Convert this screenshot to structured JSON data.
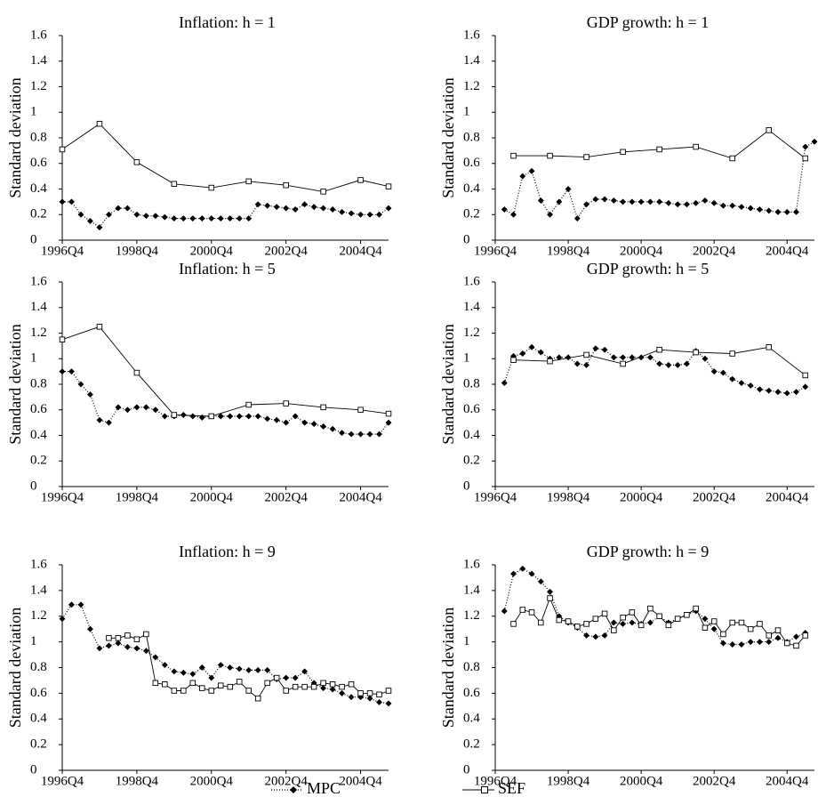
{
  "chart_data": [
    {
      "type": "line",
      "title": "Inflation: h = 1",
      "y_label": "Standard deviation",
      "xlim": [
        1996.75,
        2005.5
      ],
      "xticks": [
        {
          "value": 1996.75,
          "label": "1996Q4"
        },
        {
          "value": 1998.75,
          "label": "1998Q4"
        },
        {
          "value": 2000.75,
          "label": "2000Q4"
        },
        {
          "value": 2002.75,
          "label": "2002Q4"
        },
        {
          "value": 2004.75,
          "label": "2004Q4"
        }
      ],
      "ylim": [
        0,
        1.6
      ],
      "yticks": [
        0,
        0.2,
        0.4,
        0.6,
        0.8,
        1,
        1.2,
        1.4,
        1.6
      ],
      "series": [
        {
          "name": "MPC",
          "color": "#000000",
          "line_style": "dotted",
          "marker": "diamond",
          "x": [
            1996.75,
            1997,
            1997.25,
            1997.5,
            1997.75,
            1998,
            1998.25,
            1998.5,
            1998.75,
            1999,
            1999.25,
            1999.5,
            1999.75,
            2000,
            2000.25,
            2000.5,
            2000.75,
            2001,
            2001.25,
            2001.5,
            2001.75,
            2002,
            2002.25,
            2002.5,
            2002.75,
            2003,
            2003.25,
            2003.5,
            2003.75,
            2004,
            2004.25,
            2004.5,
            2004.75,
            2005,
            2005.25,
            2005.5
          ],
          "values": [
            0.3,
            0.3,
            0.2,
            0.15,
            0.1,
            0.2,
            0.25,
            0.25,
            0.2,
            0.19,
            0.19,
            0.18,
            0.17,
            0.17,
            0.17,
            0.17,
            0.17,
            0.17,
            0.17,
            0.17,
            0.17,
            0.28,
            0.27,
            0.26,
            0.25,
            0.24,
            0.28,
            0.26,
            0.25,
            0.24,
            0.22,
            0.21,
            0.2,
            0.2,
            0.2,
            0.25
          ]
        },
        {
          "name": "SEF",
          "color": "#000000",
          "line_style": "solid",
          "marker": "square",
          "x": [
            1996.75,
            1997.75,
            1998.75,
            1999.75,
            2000.75,
            2001.75,
            2002.75,
            2003.75,
            2004.75,
            2005.5
          ],
          "values": [
            0.71,
            0.91,
            0.61,
            0.44,
            0.41,
            0.46,
            0.43,
            0.38,
            0.47,
            0.42
          ]
        }
      ]
    },
    {
      "type": "line",
      "title": "GDP growth: h = 1",
      "y_label": "Standard deviation",
      "xlim": [
        1996.75,
        2005.5
      ],
      "xticks": [
        {
          "value": 1996.75,
          "label": "1996Q4"
        },
        {
          "value": 1998.75,
          "label": "1998Q4"
        },
        {
          "value": 2000.75,
          "label": "2000Q4"
        },
        {
          "value": 2002.75,
          "label": "2002Q4"
        },
        {
          "value": 2004.75,
          "label": "2004Q4"
        }
      ],
      "ylim": [
        0,
        1.6
      ],
      "yticks": [
        0,
        0.2,
        0.4,
        0.6,
        0.8,
        1,
        1.2,
        1.4,
        1.6
      ],
      "series": [
        {
          "name": "MPC",
          "color": "#000000",
          "line_style": "dotted",
          "marker": "diamond",
          "x": [
            1997,
            1997.25,
            1997.5,
            1997.75,
            1998,
            1998.25,
            1998.5,
            1998.75,
            1999,
            1999.25,
            1999.5,
            1999.75,
            2000,
            2000.25,
            2000.5,
            2000.75,
            2001,
            2001.25,
            2001.5,
            2001.75,
            2002,
            2002.25,
            2002.5,
            2002.75,
            2003,
            2003.25,
            2003.5,
            2003.75,
            2004,
            2004.25,
            2004.5,
            2004.75,
            2005,
            2005.25,
            2005.5
          ],
          "values": [
            0.24,
            0.2,
            0.5,
            0.54,
            0.31,
            0.2,
            0.3,
            0.4,
            0.17,
            0.28,
            0.32,
            0.32,
            0.31,
            0.3,
            0.3,
            0.3,
            0.3,
            0.3,
            0.29,
            0.28,
            0.28,
            0.29,
            0.31,
            0.29,
            0.27,
            0.27,
            0.26,
            0.25,
            0.24,
            0.23,
            0.22,
            0.22,
            0.22,
            0.73,
            0.77
          ]
        },
        {
          "name": "SEF",
          "color": "#000000",
          "line_style": "solid",
          "marker": "square",
          "x": [
            1997.25,
            1998.25,
            1999.25,
            2000.25,
            2001.25,
            2002.25,
            2003.25,
            2004.25,
            2005.25
          ],
          "values": [
            0.66,
            0.66,
            0.65,
            0.69,
            0.71,
            0.73,
            0.64,
            0.86,
            0.64
          ]
        }
      ]
    },
    {
      "type": "line",
      "title": "Inflation: h = 5",
      "y_label": "Standard deviation",
      "xlim": [
        1996.75,
        2005.5
      ],
      "xticks": [
        {
          "value": 1996.75,
          "label": "1996Q4"
        },
        {
          "value": 1998.75,
          "label": "1998Q4"
        },
        {
          "value": 2000.75,
          "label": "2000Q4"
        },
        {
          "value": 2002.75,
          "label": "2002Q4"
        },
        {
          "value": 2004.75,
          "label": "2004Q4"
        }
      ],
      "ylim": [
        0,
        1.6
      ],
      "yticks": [
        0,
        0.2,
        0.4,
        0.6,
        0.8,
        1,
        1.2,
        1.4,
        1.6
      ],
      "series": [
        {
          "name": "MPC",
          "color": "#000000",
          "line_style": "dotted",
          "marker": "diamond",
          "x": [
            1996.75,
            1997,
            1997.25,
            1997.5,
            1997.75,
            1998,
            1998.25,
            1998.5,
            1998.75,
            1999,
            1999.25,
            1999.5,
            1999.75,
            2000,
            2000.25,
            2000.5,
            2000.75,
            2001,
            2001.25,
            2001.5,
            2001.75,
            2002,
            2002.25,
            2002.5,
            2002.75,
            2003,
            2003.25,
            2003.5,
            2003.75,
            2004,
            2004.25,
            2004.5,
            2004.75,
            2005,
            2005.25,
            2005.5
          ],
          "values": [
            0.9,
            0.9,
            0.8,
            0.72,
            0.52,
            0.5,
            0.62,
            0.6,
            0.62,
            0.62,
            0.6,
            0.55,
            0.55,
            0.56,
            0.55,
            0.54,
            0.55,
            0.55,
            0.55,
            0.55,
            0.55,
            0.55,
            0.53,
            0.52,
            0.5,
            0.55,
            0.5,
            0.49,
            0.47,
            0.45,
            0.42,
            0.41,
            0.41,
            0.41,
            0.41,
            0.5
          ]
        },
        {
          "name": "SEF",
          "color": "#000000",
          "line_style": "solid",
          "marker": "square",
          "x": [
            1996.75,
            1997.75,
            1998.75,
            1999.75,
            2000.75,
            2001.75,
            2002.75,
            2003.75,
            2004.75,
            2005.5
          ],
          "values": [
            1.15,
            1.25,
            0.89,
            0.56,
            0.55,
            0.64,
            0.65,
            0.62,
            0.6,
            0.57
          ]
        }
      ]
    },
    {
      "type": "line",
      "title": "GDP growth: h = 5",
      "y_label": "Standard deviation",
      "xlim": [
        1996.75,
        2005.5
      ],
      "xticks": [
        {
          "value": 1996.75,
          "label": "1996Q4"
        },
        {
          "value": 1998.75,
          "label": "1998Q4"
        },
        {
          "value": 2000.75,
          "label": "2000Q4"
        },
        {
          "value": 2002.75,
          "label": "2002Q4"
        },
        {
          "value": 2004.75,
          "label": "2004Q4"
        }
      ],
      "ylim": [
        0,
        1.6
      ],
      "yticks": [
        0,
        0.2,
        0.4,
        0.6,
        0.8,
        1,
        1.2,
        1.4,
        1.6
      ],
      "series": [
        {
          "name": "MPC",
          "color": "#000000",
          "line_style": "dotted",
          "marker": "diamond",
          "x": [
            1997,
            1997.25,
            1997.5,
            1997.75,
            1998,
            1998.25,
            1998.5,
            1998.75,
            1999,
            1999.25,
            1999.5,
            1999.75,
            2000,
            2000.25,
            2000.5,
            2000.75,
            2001,
            2001.25,
            2001.5,
            2001.75,
            2002,
            2002.25,
            2002.5,
            2002.75,
            2003,
            2003.25,
            2003.5,
            2003.75,
            2004,
            2004.25,
            2004.5,
            2004.75,
            2005,
            2005.25
          ],
          "values": [
            0.81,
            1.02,
            1.04,
            1.09,
            1.05,
            1.0,
            1.01,
            1.01,
            0.96,
            0.95,
            1.08,
            1.07,
            1.01,
            1.01,
            1.01,
            1.01,
            1.01,
            0.96,
            0.95,
            0.95,
            0.96,
            1.06,
            1.0,
            0.9,
            0.89,
            0.84,
            0.81,
            0.79,
            0.76,
            0.75,
            0.74,
            0.73,
            0.74,
            0.78
          ]
        },
        {
          "name": "SEF",
          "color": "#000000",
          "line_style": "solid",
          "marker": "square",
          "x": [
            1997.25,
            1998.25,
            1999.25,
            2000.25,
            2001.25,
            2002.25,
            2003.25,
            2004.25,
            2005.25
          ],
          "values": [
            0.99,
            0.98,
            1.03,
            0.96,
            1.07,
            1.05,
            1.04,
            1.09,
            0.87
          ]
        }
      ]
    },
    {
      "type": "line",
      "title": "Inflation: h = 9",
      "y_label": "Standard deviation",
      "xlim": [
        1996.75,
        2005.5
      ],
      "xticks": [
        {
          "value": 1996.75,
          "label": "1996Q4"
        },
        {
          "value": 1998.75,
          "label": "1998Q4"
        },
        {
          "value": 2000.75,
          "label": "2000Q4"
        },
        {
          "value": 2002.75,
          "label": "2002Q4"
        },
        {
          "value": 2004.75,
          "label": "2004Q4"
        }
      ],
      "ylim": [
        0,
        1.6
      ],
      "yticks": [
        0,
        0.2,
        0.4,
        0.6,
        0.8,
        1,
        1.2,
        1.4,
        1.6
      ],
      "series": [
        {
          "name": "MPC",
          "color": "#000000",
          "line_style": "dotted",
          "marker": "diamond",
          "x": [
            1996.75,
            1997,
            1997.25,
            1997.5,
            1997.75,
            1998,
            1998.25,
            1998.5,
            1998.75,
            1999,
            1999.25,
            1999.5,
            1999.75,
            2000,
            2000.25,
            2000.5,
            2000.75,
            2001,
            2001.25,
            2001.5,
            2001.75,
            2002,
            2002.25,
            2002.5,
            2002.75,
            2003,
            2003.25,
            2003.5,
            2003.75,
            2004,
            2004.25,
            2004.5,
            2004.75,
            2005,
            2005.25,
            2005.5
          ],
          "values": [
            1.18,
            1.29,
            1.29,
            1.1,
            0.95,
            0.97,
            0.99,
            0.96,
            0.95,
            0.93,
            0.88,
            0.82,
            0.77,
            0.76,
            0.75,
            0.8,
            0.72,
            0.82,
            0.8,
            0.79,
            0.78,
            0.78,
            0.78,
            0.71,
            0.72,
            0.72,
            0.77,
            0.68,
            0.64,
            0.63,
            0.6,
            0.57,
            0.57,
            0.56,
            0.53,
            0.52
          ]
        },
        {
          "name": "SEF",
          "color": "#000000",
          "line_style": "solid",
          "marker": "square",
          "x": [
            1998,
            1998.25,
            1998.5,
            1998.75,
            1999,
            1999.25,
            1999.5,
            1999.75,
            2000,
            2000.25,
            2000.5,
            2000.75,
            2001,
            2001.25,
            2001.5,
            2001.75,
            2002,
            2002.25,
            2002.5,
            2002.75,
            2003,
            2003.25,
            2003.5,
            2003.75,
            2004,
            2004.25,
            2004.5,
            2004.75,
            2005,
            2005.25,
            2005.5
          ],
          "values": [
            1.03,
            1.03,
            1.05,
            1.02,
            1.06,
            0.68,
            0.67,
            0.62,
            0.62,
            0.68,
            0.64,
            0.62,
            0.66,
            0.65,
            0.69,
            0.62,
            0.56,
            0.68,
            0.72,
            0.62,
            0.65,
            0.65,
            0.65,
            0.68,
            0.67,
            0.65,
            0.67,
            0.6,
            0.6,
            0.59,
            0.62
          ]
        }
      ]
    },
    {
      "type": "line",
      "title": "GDP growth: h = 9",
      "y_label": "Standard deviation",
      "xlim": [
        1996.75,
        2005.5
      ],
      "xticks": [
        {
          "value": 1996.75,
          "label": "1996Q4"
        },
        {
          "value": 1998.75,
          "label": "1998Q4"
        },
        {
          "value": 2000.75,
          "label": "2000Q4"
        },
        {
          "value": 2002.75,
          "label": "2002Q4"
        },
        {
          "value": 2004.75,
          "label": "2004Q4"
        }
      ],
      "ylim": [
        0,
        1.6
      ],
      "yticks": [
        0,
        0.2,
        0.4,
        0.6,
        0.8,
        1,
        1.2,
        1.4,
        1.6
      ],
      "series": [
        {
          "name": "MPC",
          "color": "#000000",
          "line_style": "dotted",
          "marker": "diamond",
          "x": [
            1997,
            1997.25,
            1997.5,
            1997.75,
            1998,
            1998.25,
            1998.5,
            1998.75,
            1999,
            1999.25,
            1999.5,
            1999.75,
            2000,
            2000.25,
            2000.5,
            2000.75,
            2001,
            2001.25,
            2001.5,
            2001.75,
            2002,
            2002.25,
            2002.5,
            2002.75,
            2003,
            2003.25,
            2003.5,
            2003.75,
            2004,
            2004.25,
            2004.5,
            2004.75,
            2005,
            2005.25
          ],
          "values": [
            1.24,
            1.53,
            1.57,
            1.53,
            1.47,
            1.39,
            1.2,
            1.15,
            1.11,
            1.05,
            1.04,
            1.05,
            1.15,
            1.14,
            1.15,
            1.14,
            1.15,
            1.2,
            1.15,
            1.18,
            1.21,
            1.24,
            1.18,
            1.1,
            0.99,
            0.98,
            0.98,
            1.0,
            1.0,
            1.0,
            1.03,
            1.0,
            1.04,
            1.07
          ]
        },
        {
          "name": "SEF",
          "color": "#000000",
          "line_style": "solid",
          "marker": "square",
          "x": [
            1997.25,
            1997.5,
            1997.75,
            1998,
            1998.25,
            1998.5,
            1998.75,
            1999,
            1999.25,
            1999.5,
            1999.75,
            2000,
            2000.25,
            2000.5,
            2000.75,
            2001,
            2001.25,
            2001.5,
            2001.75,
            2002,
            2002.25,
            2002.5,
            2002.75,
            2003,
            2003.25,
            2003.5,
            2003.75,
            2004,
            2004.25,
            2004.5,
            2004.75,
            2005,
            2005.25
          ],
          "values": [
            1.14,
            1.25,
            1.23,
            1.15,
            1.34,
            1.17,
            1.16,
            1.12,
            1.14,
            1.18,
            1.22,
            1.09,
            1.19,
            1.23,
            1.13,
            1.26,
            1.2,
            1.13,
            1.18,
            1.21,
            1.26,
            1.11,
            1.16,
            1.06,
            1.15,
            1.15,
            1.1,
            1.14,
            1.05,
            1.09,
            0.99,
            0.97,
            1.05
          ]
        }
      ]
    }
  ]
}
